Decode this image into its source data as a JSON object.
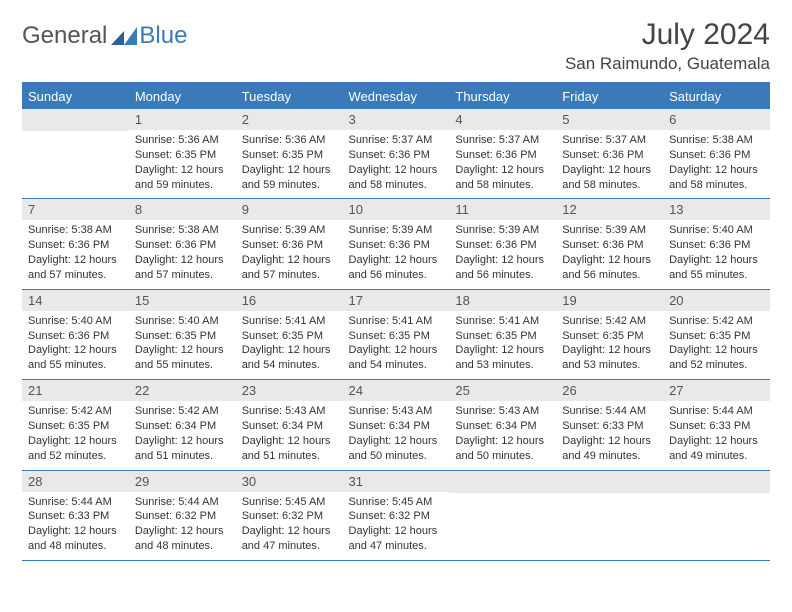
{
  "logo": {
    "general": "General",
    "blue": "Blue"
  },
  "title": "July 2024",
  "location": "San Raimundo, Guatemala",
  "colors": {
    "header_bg": "#3a7ab8",
    "daynum_bg": "#e9e9e9",
    "page_bg": "#ffffff",
    "text": "#333333"
  },
  "dayHeaders": [
    "Sunday",
    "Monday",
    "Tuesday",
    "Wednesday",
    "Thursday",
    "Friday",
    "Saturday"
  ],
  "weeks": [
    [
      {
        "n": "",
        "sr": "",
        "ss": "",
        "dl": ""
      },
      {
        "n": "1",
        "sr": "Sunrise: 5:36 AM",
        "ss": "Sunset: 6:35 PM",
        "dl": "Daylight: 12 hours and 59 minutes."
      },
      {
        "n": "2",
        "sr": "Sunrise: 5:36 AM",
        "ss": "Sunset: 6:35 PM",
        "dl": "Daylight: 12 hours and 59 minutes."
      },
      {
        "n": "3",
        "sr": "Sunrise: 5:37 AM",
        "ss": "Sunset: 6:36 PM",
        "dl": "Daylight: 12 hours and 58 minutes."
      },
      {
        "n": "4",
        "sr": "Sunrise: 5:37 AM",
        "ss": "Sunset: 6:36 PM",
        "dl": "Daylight: 12 hours and 58 minutes."
      },
      {
        "n": "5",
        "sr": "Sunrise: 5:37 AM",
        "ss": "Sunset: 6:36 PM",
        "dl": "Daylight: 12 hours and 58 minutes."
      },
      {
        "n": "6",
        "sr": "Sunrise: 5:38 AM",
        "ss": "Sunset: 6:36 PM",
        "dl": "Daylight: 12 hours and 58 minutes."
      }
    ],
    [
      {
        "n": "7",
        "sr": "Sunrise: 5:38 AM",
        "ss": "Sunset: 6:36 PM",
        "dl": "Daylight: 12 hours and 57 minutes."
      },
      {
        "n": "8",
        "sr": "Sunrise: 5:38 AM",
        "ss": "Sunset: 6:36 PM",
        "dl": "Daylight: 12 hours and 57 minutes."
      },
      {
        "n": "9",
        "sr": "Sunrise: 5:39 AM",
        "ss": "Sunset: 6:36 PM",
        "dl": "Daylight: 12 hours and 57 minutes."
      },
      {
        "n": "10",
        "sr": "Sunrise: 5:39 AM",
        "ss": "Sunset: 6:36 PM",
        "dl": "Daylight: 12 hours and 56 minutes."
      },
      {
        "n": "11",
        "sr": "Sunrise: 5:39 AM",
        "ss": "Sunset: 6:36 PM",
        "dl": "Daylight: 12 hours and 56 minutes."
      },
      {
        "n": "12",
        "sr": "Sunrise: 5:39 AM",
        "ss": "Sunset: 6:36 PM",
        "dl": "Daylight: 12 hours and 56 minutes."
      },
      {
        "n": "13",
        "sr": "Sunrise: 5:40 AM",
        "ss": "Sunset: 6:36 PM",
        "dl": "Daylight: 12 hours and 55 minutes."
      }
    ],
    [
      {
        "n": "14",
        "sr": "Sunrise: 5:40 AM",
        "ss": "Sunset: 6:36 PM",
        "dl": "Daylight: 12 hours and 55 minutes."
      },
      {
        "n": "15",
        "sr": "Sunrise: 5:40 AM",
        "ss": "Sunset: 6:35 PM",
        "dl": "Daylight: 12 hours and 55 minutes."
      },
      {
        "n": "16",
        "sr": "Sunrise: 5:41 AM",
        "ss": "Sunset: 6:35 PM",
        "dl": "Daylight: 12 hours and 54 minutes."
      },
      {
        "n": "17",
        "sr": "Sunrise: 5:41 AM",
        "ss": "Sunset: 6:35 PM",
        "dl": "Daylight: 12 hours and 54 minutes."
      },
      {
        "n": "18",
        "sr": "Sunrise: 5:41 AM",
        "ss": "Sunset: 6:35 PM",
        "dl": "Daylight: 12 hours and 53 minutes."
      },
      {
        "n": "19",
        "sr": "Sunrise: 5:42 AM",
        "ss": "Sunset: 6:35 PM",
        "dl": "Daylight: 12 hours and 53 minutes."
      },
      {
        "n": "20",
        "sr": "Sunrise: 5:42 AM",
        "ss": "Sunset: 6:35 PM",
        "dl": "Daylight: 12 hours and 52 minutes."
      }
    ],
    [
      {
        "n": "21",
        "sr": "Sunrise: 5:42 AM",
        "ss": "Sunset: 6:35 PM",
        "dl": "Daylight: 12 hours and 52 minutes."
      },
      {
        "n": "22",
        "sr": "Sunrise: 5:42 AM",
        "ss": "Sunset: 6:34 PM",
        "dl": "Daylight: 12 hours and 51 minutes."
      },
      {
        "n": "23",
        "sr": "Sunrise: 5:43 AM",
        "ss": "Sunset: 6:34 PM",
        "dl": "Daylight: 12 hours and 51 minutes."
      },
      {
        "n": "24",
        "sr": "Sunrise: 5:43 AM",
        "ss": "Sunset: 6:34 PM",
        "dl": "Daylight: 12 hours and 50 minutes."
      },
      {
        "n": "25",
        "sr": "Sunrise: 5:43 AM",
        "ss": "Sunset: 6:34 PM",
        "dl": "Daylight: 12 hours and 50 minutes."
      },
      {
        "n": "26",
        "sr": "Sunrise: 5:44 AM",
        "ss": "Sunset: 6:33 PM",
        "dl": "Daylight: 12 hours and 49 minutes."
      },
      {
        "n": "27",
        "sr": "Sunrise: 5:44 AM",
        "ss": "Sunset: 6:33 PM",
        "dl": "Daylight: 12 hours and 49 minutes."
      }
    ],
    [
      {
        "n": "28",
        "sr": "Sunrise: 5:44 AM",
        "ss": "Sunset: 6:33 PM",
        "dl": "Daylight: 12 hours and 48 minutes."
      },
      {
        "n": "29",
        "sr": "Sunrise: 5:44 AM",
        "ss": "Sunset: 6:32 PM",
        "dl": "Daylight: 12 hours and 48 minutes."
      },
      {
        "n": "30",
        "sr": "Sunrise: 5:45 AM",
        "ss": "Sunset: 6:32 PM",
        "dl": "Daylight: 12 hours and 47 minutes."
      },
      {
        "n": "31",
        "sr": "Sunrise: 5:45 AM",
        "ss": "Sunset: 6:32 PM",
        "dl": "Daylight: 12 hours and 47 minutes."
      },
      {
        "n": "",
        "sr": "",
        "ss": "",
        "dl": ""
      },
      {
        "n": "",
        "sr": "",
        "ss": "",
        "dl": ""
      },
      {
        "n": "",
        "sr": "",
        "ss": "",
        "dl": ""
      }
    ]
  ]
}
